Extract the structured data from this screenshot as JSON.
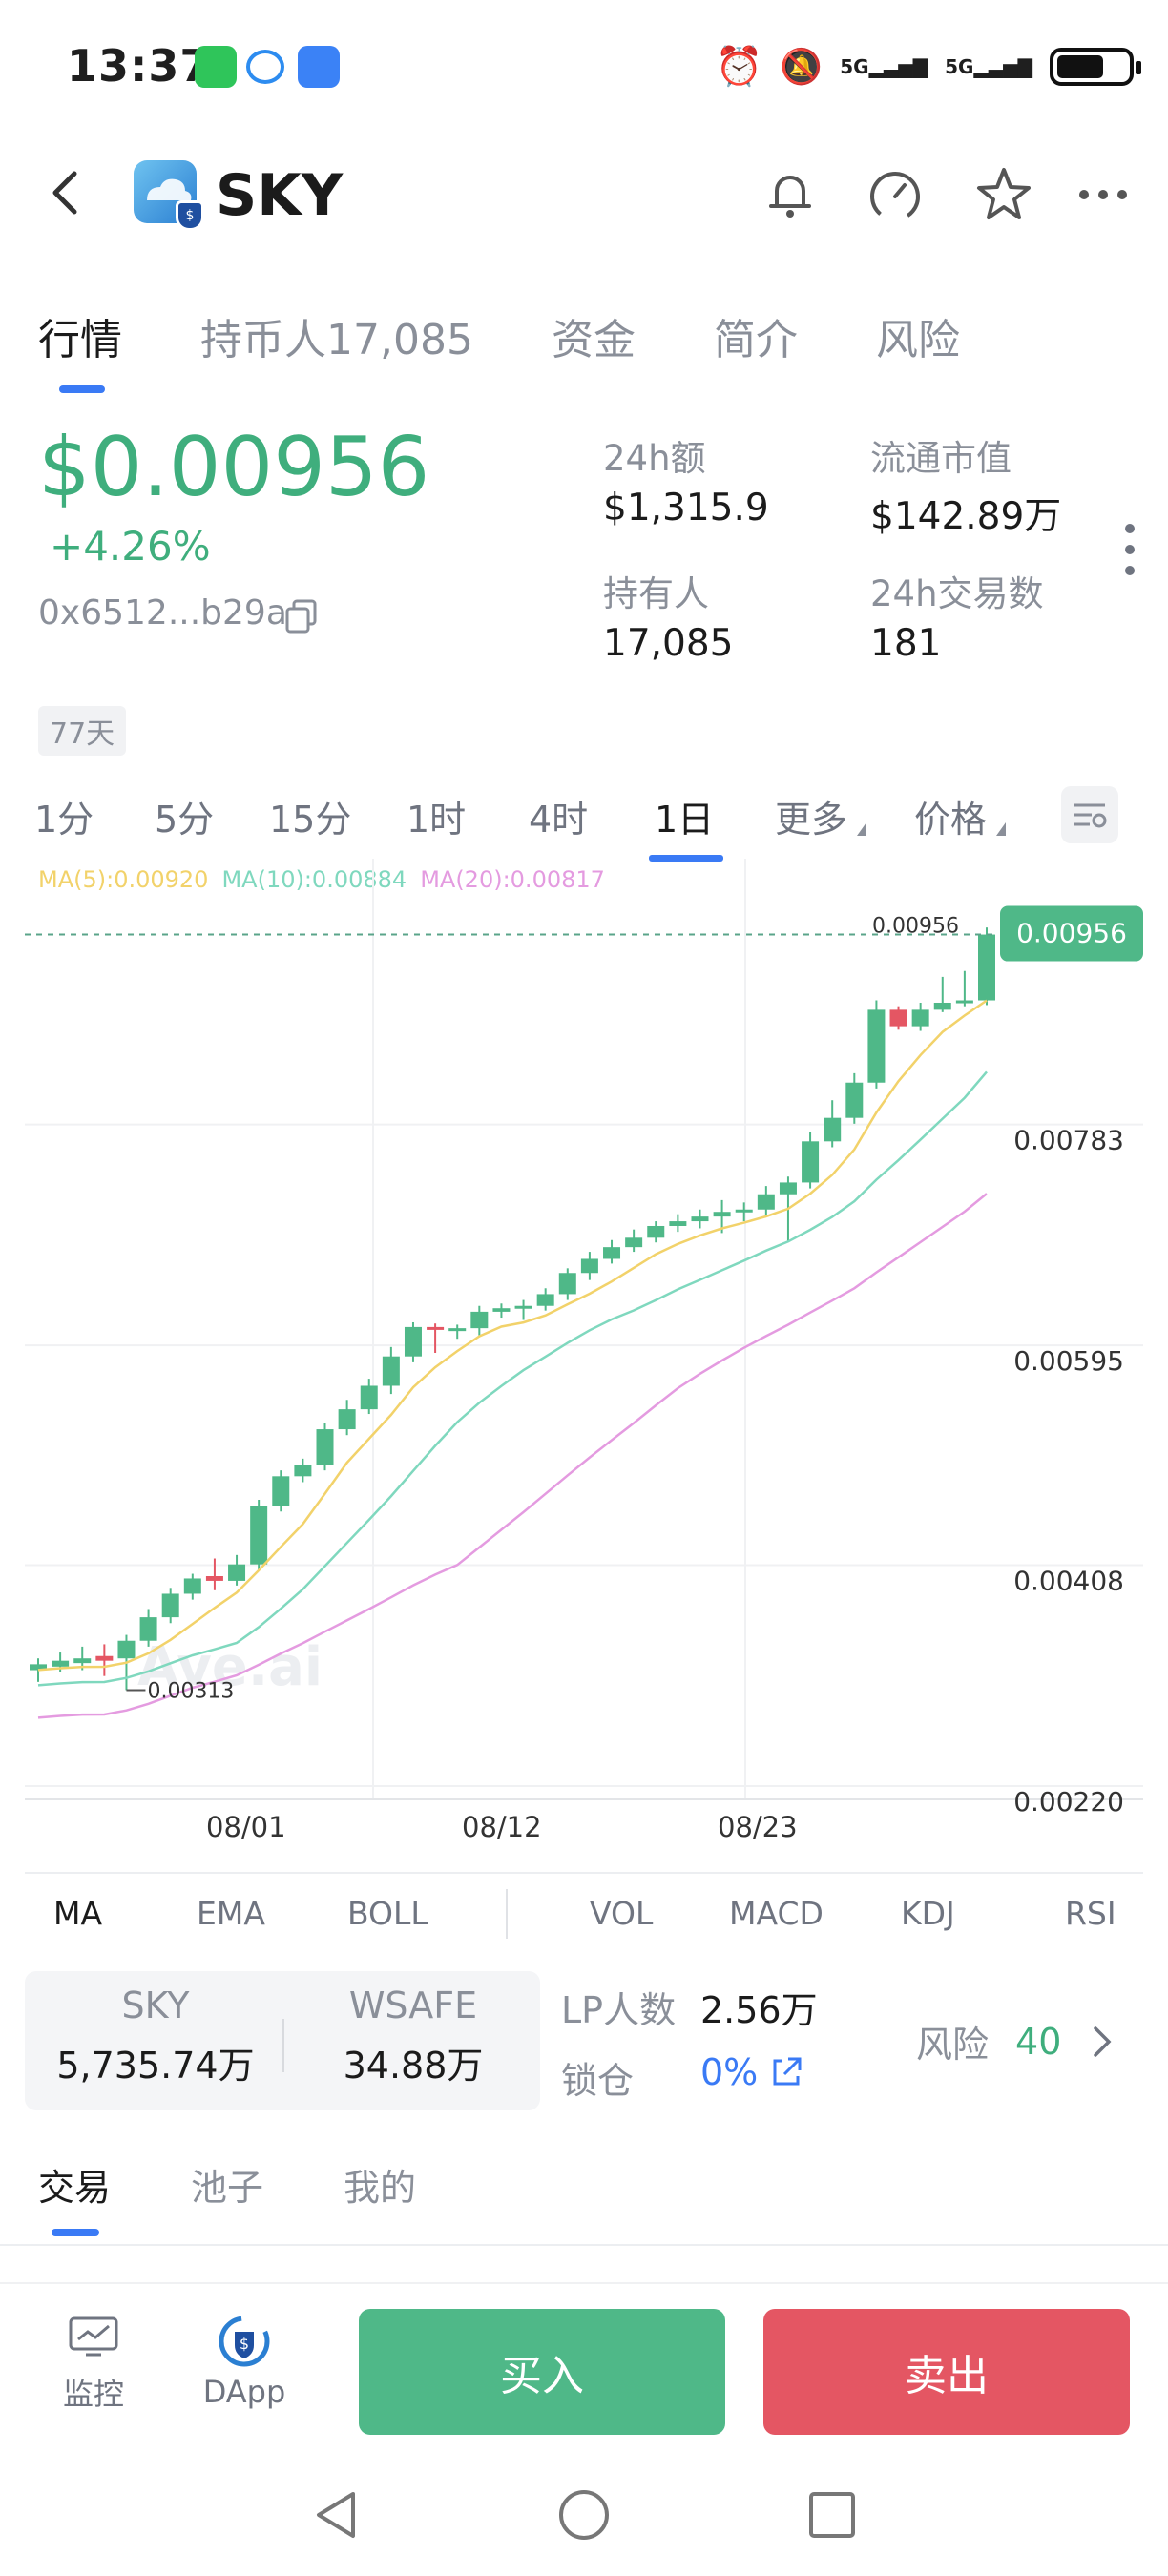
{
  "status": {
    "time": "13:37",
    "network1": "5G",
    "network2": "5G"
  },
  "header": {
    "title": "SKY"
  },
  "tabs": [
    "行情",
    "持币人17,085",
    "资金",
    "简介",
    "风险"
  ],
  "token": {
    "price": "$0.00956",
    "change": "+4.26%",
    "address": "0x6512...b29a",
    "age_badge": "77天"
  },
  "stats": {
    "volume_label": "24h额",
    "volume_value": "$1,315.9",
    "mcap_label": "流通市值",
    "mcap_value": "$142.89万",
    "holders_label": "持有人",
    "holders_value": "17,085",
    "tx_label": "24h交易数",
    "tx_value": "181"
  },
  "intervals": [
    "1分",
    "5分",
    "15分",
    "1时",
    "4时",
    "1日",
    "更多",
    "价格"
  ],
  "active_interval": "1日",
  "ma_legend": {
    "ma5": "MA(5):0.00920",
    "ma10": "MA(10):0.00884",
    "ma20": "MA(20):0.00817"
  },
  "colors": {
    "up": "#4fb888",
    "down": "#e45663",
    "ma5": "#f2d26a",
    "ma10": "#7fd8be",
    "ma20": "#e49be0",
    "accent": "#3a7af5"
  },
  "chart_data": {
    "type": "candlestick",
    "y_ticks": [
      "0.00783",
      "0.00595",
      "0.00408",
      "0.00220"
    ],
    "x_ticks": [
      "08/01",
      "08/12",
      "08/23"
    ],
    "current_price_tag": "0.00956",
    "current_price_marker": "0.00956",
    "low_marker": "0.00313",
    "watermark": "Ave.ai",
    "ylim": [
      0.0022,
      0.0098
    ],
    "candles": [
      {
        "o": 0.0033,
        "c": 0.00335,
        "h": 0.0034,
        "l": 0.0032
      },
      {
        "o": 0.00333,
        "c": 0.00338,
        "h": 0.00345,
        "l": 0.00328
      },
      {
        "o": 0.00336,
        "c": 0.0034,
        "h": 0.0035,
        "l": 0.0033
      },
      {
        "o": 0.00342,
        "c": 0.00338,
        "h": 0.00352,
        "l": 0.00325
      },
      {
        "o": 0.0034,
        "c": 0.00355,
        "h": 0.0036,
        "l": 0.00313
      },
      {
        "o": 0.00355,
        "c": 0.00375,
        "h": 0.00382,
        "l": 0.0035
      },
      {
        "o": 0.00375,
        "c": 0.00395,
        "h": 0.004,
        "l": 0.0037
      },
      {
        "o": 0.00395,
        "c": 0.00408,
        "h": 0.00412,
        "l": 0.0039
      },
      {
        "o": 0.0041,
        "c": 0.00406,
        "h": 0.00425,
        "l": 0.00398
      },
      {
        "o": 0.00406,
        "c": 0.0042,
        "h": 0.00428,
        "l": 0.00402
      },
      {
        "o": 0.0042,
        "c": 0.0047,
        "h": 0.00475,
        "l": 0.00415
      },
      {
        "o": 0.0047,
        "c": 0.00495,
        "h": 0.005,
        "l": 0.00465
      },
      {
        "o": 0.00495,
        "c": 0.00505,
        "h": 0.0051,
        "l": 0.0049
      },
      {
        "o": 0.00505,
        "c": 0.00535,
        "h": 0.0054,
        "l": 0.005
      },
      {
        "o": 0.00535,
        "c": 0.00552,
        "h": 0.0056,
        "l": 0.0053
      },
      {
        "o": 0.00552,
        "c": 0.00572,
        "h": 0.00578,
        "l": 0.00548
      },
      {
        "o": 0.00572,
        "c": 0.00597,
        "h": 0.00605,
        "l": 0.00565
      },
      {
        "o": 0.00597,
        "c": 0.00622,
        "h": 0.00626,
        "l": 0.00592
      },
      {
        "o": 0.00622,
        "c": 0.0062,
        "h": 0.00625,
        "l": 0.006
      },
      {
        "o": 0.0062,
        "c": 0.00621,
        "h": 0.00624,
        "l": 0.00612
      },
      {
        "o": 0.00621,
        "c": 0.00635,
        "h": 0.0064,
        "l": 0.00615
      },
      {
        "o": 0.00635,
        "c": 0.00638,
        "h": 0.00642,
        "l": 0.0063
      },
      {
        "o": 0.00638,
        "c": 0.0064,
        "h": 0.00645,
        "l": 0.00628
      },
      {
        "o": 0.0064,
        "c": 0.0065,
        "h": 0.00655,
        "l": 0.00636
      },
      {
        "o": 0.0065,
        "c": 0.00668,
        "h": 0.00672,
        "l": 0.00645
      },
      {
        "o": 0.00668,
        "c": 0.0068,
        "h": 0.00686,
        "l": 0.00662
      },
      {
        "o": 0.0068,
        "c": 0.0069,
        "h": 0.00696,
        "l": 0.00676
      },
      {
        "o": 0.0069,
        "c": 0.00698,
        "h": 0.00705,
        "l": 0.00686
      },
      {
        "o": 0.00698,
        "c": 0.00708,
        "h": 0.00712,
        "l": 0.00694
      },
      {
        "o": 0.00708,
        "c": 0.00712,
        "h": 0.00718,
        "l": 0.00703
      },
      {
        "o": 0.00712,
        "c": 0.00716,
        "h": 0.00722,
        "l": 0.00706
      },
      {
        "o": 0.00716,
        "c": 0.0072,
        "h": 0.0073,
        "l": 0.00702
      },
      {
        "o": 0.0072,
        "c": 0.00722,
        "h": 0.00728,
        "l": 0.00712
      },
      {
        "o": 0.00722,
        "c": 0.00735,
        "h": 0.00742,
        "l": 0.00716
      },
      {
        "o": 0.00735,
        "c": 0.00745,
        "h": 0.0075,
        "l": 0.00695
      },
      {
        "o": 0.00745,
        "c": 0.0078,
        "h": 0.00788,
        "l": 0.0074
      },
      {
        "o": 0.0078,
        "c": 0.008,
        "h": 0.00815,
        "l": 0.00775
      },
      {
        "o": 0.008,
        "c": 0.0083,
        "h": 0.00838,
        "l": 0.00795
      },
      {
        "o": 0.0083,
        "c": 0.00892,
        "h": 0.009,
        "l": 0.00825
      },
      {
        "o": 0.00892,
        "c": 0.00878,
        "h": 0.00895,
        "l": 0.00875
      },
      {
        "o": 0.00878,
        "c": 0.00892,
        "h": 0.00898,
        "l": 0.00874
      },
      {
        "o": 0.00892,
        "c": 0.00898,
        "h": 0.0092,
        "l": 0.0089
      },
      {
        "o": 0.00898,
        "c": 0.009,
        "h": 0.00925,
        "l": 0.00895
      },
      {
        "o": 0.009,
        "c": 0.00956,
        "h": 0.00962,
        "l": 0.00896
      }
    ]
  },
  "indicators": [
    "MA",
    "EMA",
    "BOLL",
    "VOL",
    "MACD",
    "KDJ",
    "RSI"
  ],
  "pool": {
    "token_a": "SKY",
    "token_a_amount": "5,735.74万",
    "token_b": "WSAFE",
    "token_b_amount": "34.88万",
    "lp_label": "LP人数",
    "lp_value": "2.56万",
    "lock_label": "锁仓",
    "lock_value": "0%",
    "risk_label": "风险",
    "risk_value": "40"
  },
  "bottom_tabs": [
    "交易",
    "池子",
    "我的"
  ],
  "actions": {
    "monitor": "监控",
    "dapp": "DApp",
    "buy": "买入",
    "sell": "卖出"
  }
}
